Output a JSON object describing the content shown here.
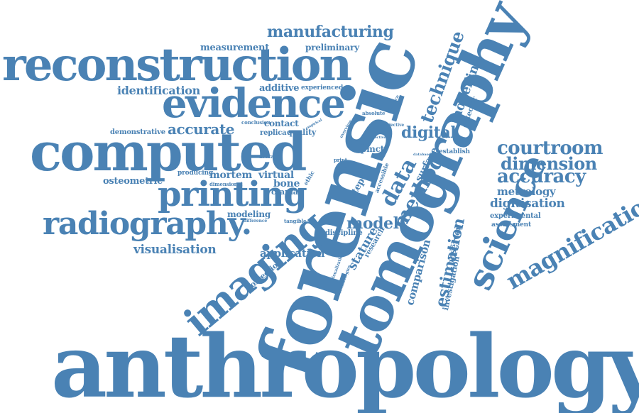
{
  "cloud": {
    "text_color": "#4a82b4",
    "background": "#ffffff",
    "words": {
      "anthropology": "anthropology",
      "forensic": "forensic",
      "tomography": "tomography",
      "computed": "computed",
      "reconstruction": "reconstruction",
      "evidence": "evidence",
      "printing": "printing",
      "radiography": "radiography.",
      "imaging": "imaging",
      "science": "science",
      "magnification": "magnification",
      "manufacturing": "manufacturing",
      "courtroom": "courtroom",
      "dimension": "dimension",
      "accuracy": "accuracy",
      "technique": "technique",
      "modelling": "modelling",
      "method": "method",
      "data": "data",
      "digital": "digital",
      "model": "model",
      "estimation": "estimation",
      "comparison": "comparison",
      "stature": "stature",
      "identification": "identification",
      "accurate": "accurate",
      "visualisation": "visualisation",
      "measurement": "measurement",
      "preliminary": "preliminary",
      "additive": "additive",
      "experienced": "experienced",
      "contact": "contact",
      "quality": "quality",
      "mortem": "mortem",
      "bone": "bone",
      "virtual": "virtual",
      "crania": "crania",
      "osteometric": "osteometric",
      "producing": "producing",
      "demonstrative": "demonstrative",
      "application": "application",
      "metrology": "metrology",
      "digitisation": "digitisation",
      "experimental": "experimental",
      "assessment": "assessment",
      "observer": "observer",
      "investigation": "investigation",
      "correction": "correction",
      "surface": "surface",
      "establish": "establish",
      "pmct": "pmct",
      "replica": "replica",
      "research": "research",
      "step": "step",
      "detector": "detector",
      "modeling": "modeling",
      "discipline": "discipline",
      "accessible": "accessible",
      "tangible": "tangible",
      "absolute": "absolute",
      "distance": "distance",
      "conclusion": "conclusion",
      "average": "average",
      "dimensional": "dimensional",
      "post": "post",
      "print": "print",
      "human": "human",
      "result": "result",
      "visualization": "visualization",
      "technologies": "technologies",
      "difference": "difference",
      "empirical": "empirical",
      "overview": "overview",
      "objective": "objective",
      "selective": "selective",
      "database": "database",
      "ethic": "ethic"
    }
  }
}
